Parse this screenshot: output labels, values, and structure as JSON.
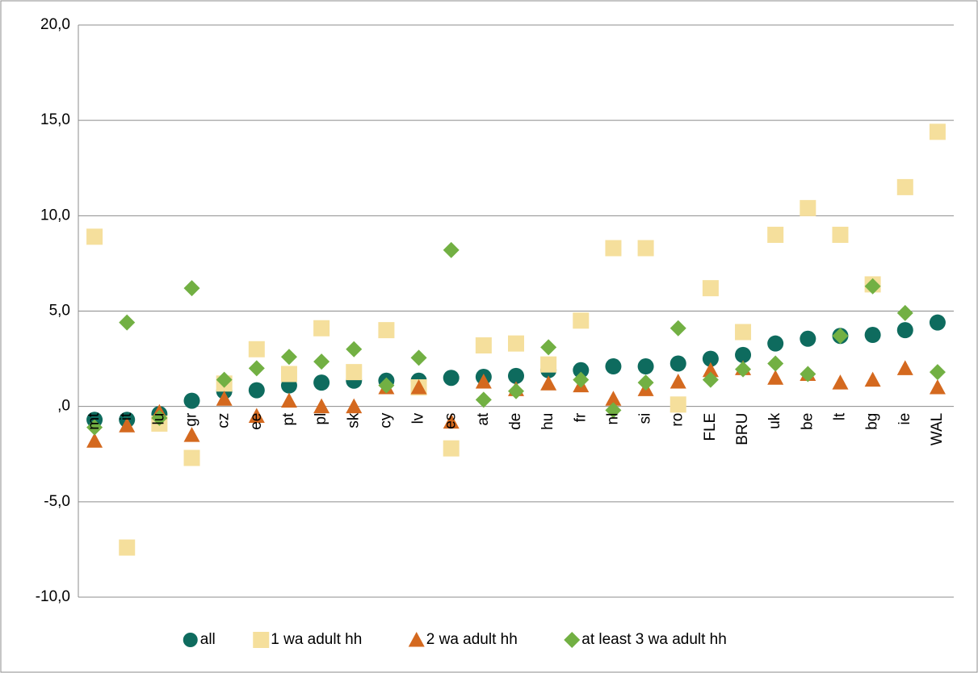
{
  "chart_data": {
    "type": "scatter",
    "categories": [
      "mt",
      "it",
      "lu",
      "gr",
      "cz",
      "ee",
      "pt",
      "pl",
      "sk",
      "cy",
      "lv",
      "es",
      "at",
      "de",
      "hu",
      "fr",
      "nl",
      "si",
      "ro",
      "FLE",
      "BRU",
      "uk",
      "be",
      "lt",
      "bg",
      "ie",
      "WAL"
    ],
    "series": [
      {
        "name": "all",
        "color": "#0e6b5e",
        "marker": "circle",
        "values": [
          -0.7,
          -0.7,
          -0.4,
          0.3,
          0.8,
          0.85,
          1.1,
          1.25,
          1.35,
          1.35,
          1.35,
          1.5,
          1.55,
          1.6,
          1.9,
          1.9,
          2.1,
          2.1,
          2.25,
          2.5,
          2.7,
          3.3,
          3.55,
          3.7,
          3.75,
          4.0,
          4.4
        ]
      },
      {
        "name": "1 wa adult hh",
        "color": "#f5df9c",
        "marker": "square",
        "values": [
          8.9,
          -7.4,
          -0.9,
          -2.7,
          1.2,
          3.0,
          1.7,
          4.1,
          1.8,
          4.0,
          1.0,
          -2.2,
          3.2,
          3.3,
          2.2,
          4.5,
          8.3,
          8.3,
          0.1,
          6.2,
          3.9,
          9.0,
          10.4,
          9.0,
          6.4,
          11.5,
          14.4
        ]
      },
      {
        "name": "2 wa adult hh",
        "color": "#d4691f",
        "marker": "triangle",
        "values": [
          -1.8,
          -1.0,
          -0.3,
          -1.5,
          0.4,
          -0.5,
          0.3,
          0.0,
          0.0,
          1.0,
          1.0,
          -0.8,
          1.3,
          0.9,
          1.2,
          1.1,
          0.4,
          0.9,
          1.3,
          1.9,
          2.0,
          1.5,
          1.7,
          1.25,
          1.4,
          2.0,
          1.0
        ]
      },
      {
        "name": "at least 3 wa adult hh",
        "color": "#72b043",
        "marker": "diamond",
        "values": [
          -1.1,
          4.4,
          -0.6,
          6.2,
          1.4,
          2.0,
          2.6,
          2.35,
          3.0,
          1.1,
          2.55,
          8.2,
          0.35,
          0.8,
          3.1,
          1.4,
          -0.2,
          1.25,
          4.1,
          1.4,
          1.95,
          2.25,
          1.7,
          3.7,
          6.3,
          4.9,
          1.8
        ]
      }
    ],
    "ylim": [
      -10,
      20
    ],
    "yticks": [
      {
        "value": -10,
        "label": "-10,0"
      },
      {
        "value": -5,
        "label": "-5,0"
      },
      {
        "value": 0,
        "label": ",0"
      },
      {
        "value": 5,
        "label": "5,0"
      },
      {
        "value": 10,
        "label": "10,0"
      },
      {
        "value": 15,
        "label": "15,0"
      },
      {
        "value": 20,
        "label": "20,0"
      }
    ],
    "grid": true,
    "legend": "bottom"
  }
}
